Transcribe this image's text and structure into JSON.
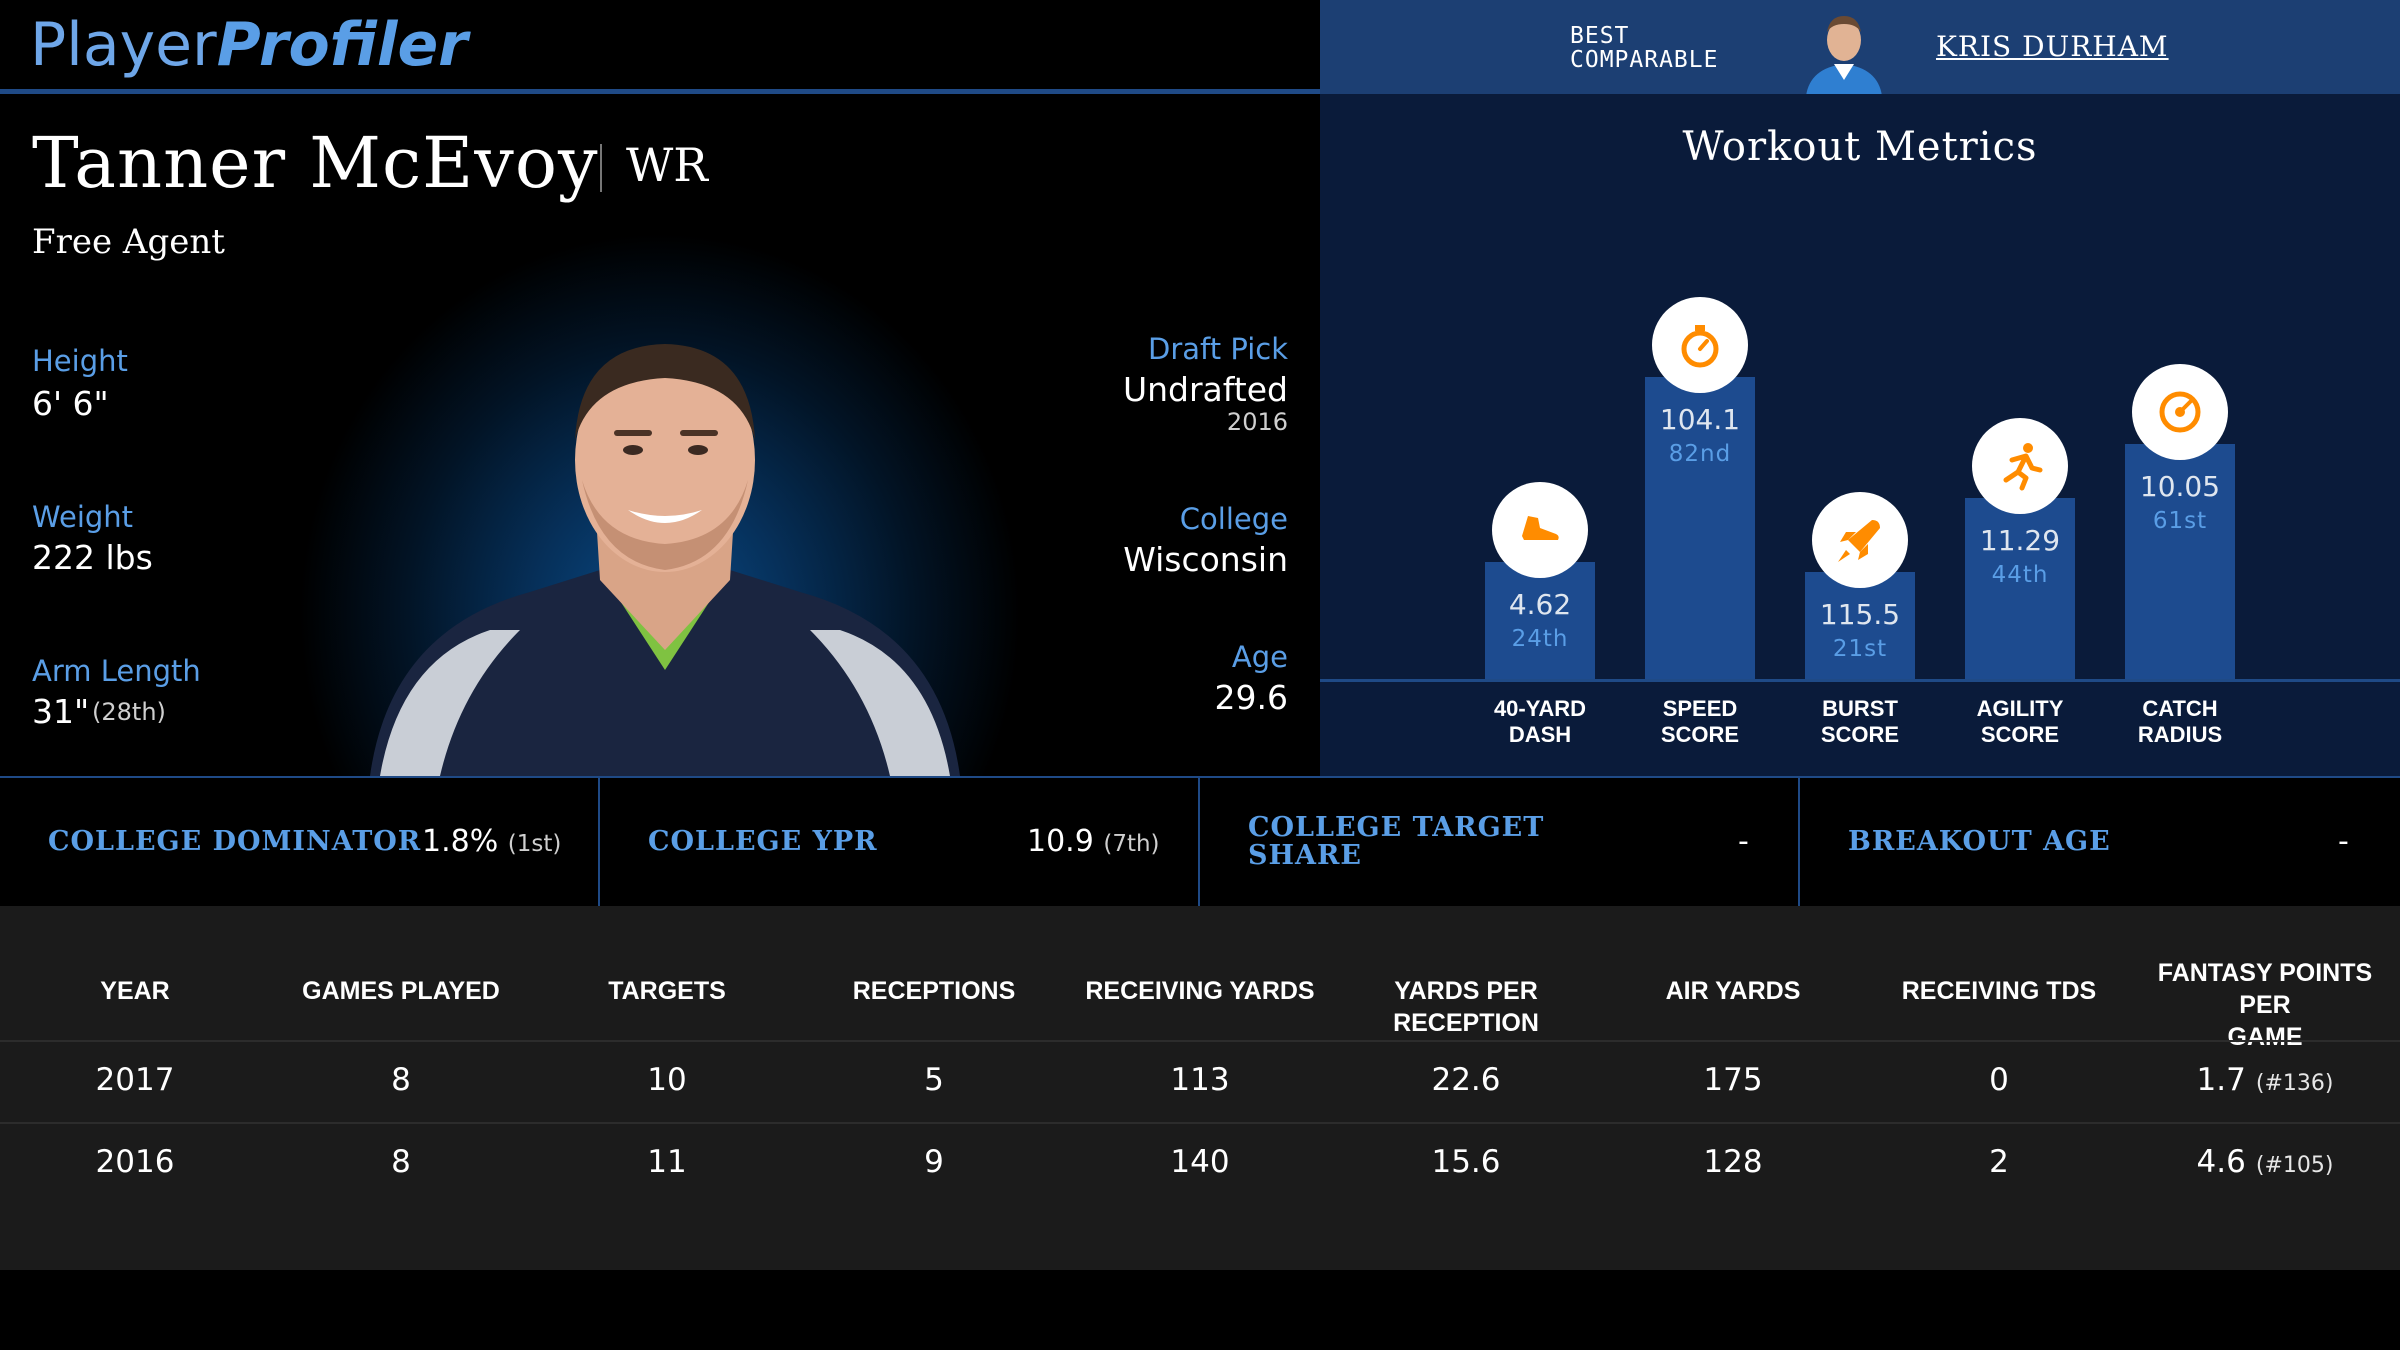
{
  "brand": {
    "logo_part1": "Player",
    "logo_part2": "Profiler"
  },
  "comparable": {
    "label_line1": "BEST",
    "label_line2": "COMPARABLE",
    "name": "KRIS DURHAM"
  },
  "player": {
    "name": "Tanner McEvoy",
    "position": "WR",
    "status": "Free Agent",
    "height_label": "Height",
    "height": "6' 6\"",
    "weight_label": "Weight",
    "weight": "222 lbs",
    "arm_label": "Arm Length",
    "arm": "31\"",
    "arm_rank": "(28th)",
    "draft_label": "Draft Pick",
    "draft": "Undrafted",
    "draft_year": "2016",
    "college_label": "College",
    "college": "Wisconsin",
    "age_label": "Age",
    "age": "29.6"
  },
  "workout": {
    "title": "Workout Metrics",
    "metrics": [
      {
        "value": "4.62",
        "rank": "24th",
        "percentile": 24,
        "line1": "40-YARD",
        "line2": "DASH",
        "icon": "shoe-icon"
      },
      {
        "value": "104.1",
        "rank": "82nd",
        "percentile": 82,
        "line1": "SPEED",
        "line2": "SCORE",
        "icon": "stopwatch-icon"
      },
      {
        "value": "115.5",
        "rank": "21st",
        "percentile": 21,
        "line1": "BURST",
        "line2": "SCORE",
        "icon": "rocket-icon"
      },
      {
        "value": "11.29",
        "rank": "44th",
        "percentile": 44,
        "line1": "AGILITY",
        "line2": "SCORE",
        "icon": "runner-icon"
      },
      {
        "value": "10.05",
        "rank": "61st",
        "percentile": 61,
        "line1": "CATCH",
        "line2": "RADIUS",
        "icon": "target-icon"
      }
    ],
    "accent": "#ff8c00"
  },
  "college_stats": [
    {
      "label": "COLLEGE DOMINATOR",
      "value": "1.8%",
      "rank": "(1st)"
    },
    {
      "label": "COLLEGE YPR",
      "value": "10.9",
      "rank": "(7th)"
    },
    {
      "label_line1": "COLLEGE TARGET",
      "label_line2": "SHARE",
      "value": "-",
      "rank": ""
    },
    {
      "label": "BREAKOUT AGE",
      "value": "-",
      "rank": ""
    }
  ],
  "season_table": {
    "headers": [
      "YEAR",
      "GAMES PLAYED",
      "TARGETS",
      "RECEPTIONS",
      "RECEIVING YARDS",
      "YARDS PER RECEPTION",
      "AIR YARDS",
      "RECEIVING TDS",
      "FANTASY POINTS PER",
      "GAME"
    ],
    "rows": [
      {
        "year": "2017",
        "games": "8",
        "targets": "10",
        "receptions": "5",
        "yards": "113",
        "ypr": "22.6",
        "air": "175",
        "tds": "0",
        "fppg": "1.7",
        "fppg_rank": "(#136)"
      },
      {
        "year": "2016",
        "games": "8",
        "targets": "11",
        "receptions": "9",
        "yards": "140",
        "ypr": "15.6",
        "air": "128",
        "tds": "2",
        "fppg": "4.6",
        "fppg_rank": "(#105)"
      }
    ]
  }
}
